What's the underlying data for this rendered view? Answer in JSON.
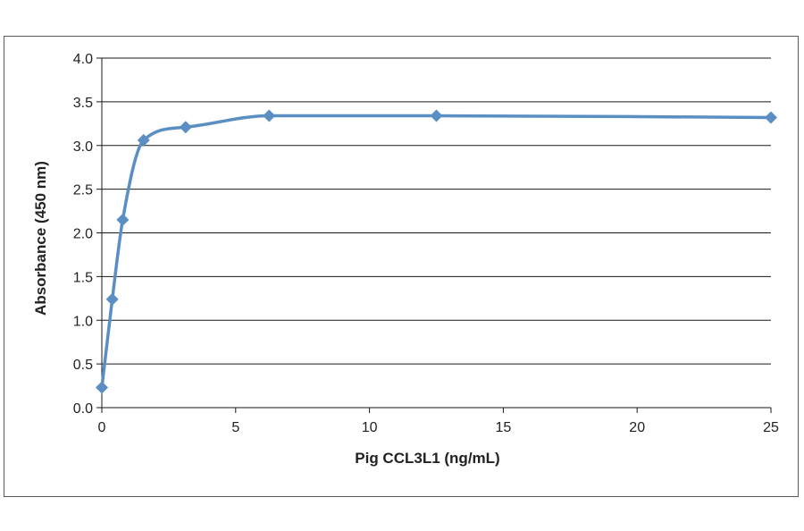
{
  "chart_data": {
    "type": "line",
    "title": "",
    "xlabel": "Pig CCL3L1  (ng/mL)",
    "ylabel": "Absorbance  (450 nm)",
    "xlim": [
      0,
      25
    ],
    "ylim": [
      0,
      4.0
    ],
    "x_ticks": [
      0,
      5,
      10,
      15,
      20,
      25
    ],
    "y_ticks": [
      0.0,
      0.5,
      1.0,
      1.5,
      2.0,
      2.5,
      3.0,
      3.5,
      4.0
    ],
    "y_tick_labels": [
      "0.0",
      "0.5",
      "1.0",
      "1.5",
      "2.0",
      "2.5",
      "3.0",
      "3.5",
      "4.0"
    ],
    "grid": "horizontal",
    "legend": "none",
    "smooth": true,
    "series": [
      {
        "color": "#5b8fc3",
        "marker": "diamond",
        "x": [
          0,
          0.39,
          0.78,
          1.56,
          3.13,
          6.25,
          12.5,
          25
        ],
        "y": [
          0.23,
          1.24,
          2.15,
          3.06,
          3.21,
          3.34,
          3.34,
          3.32
        ]
      }
    ]
  }
}
